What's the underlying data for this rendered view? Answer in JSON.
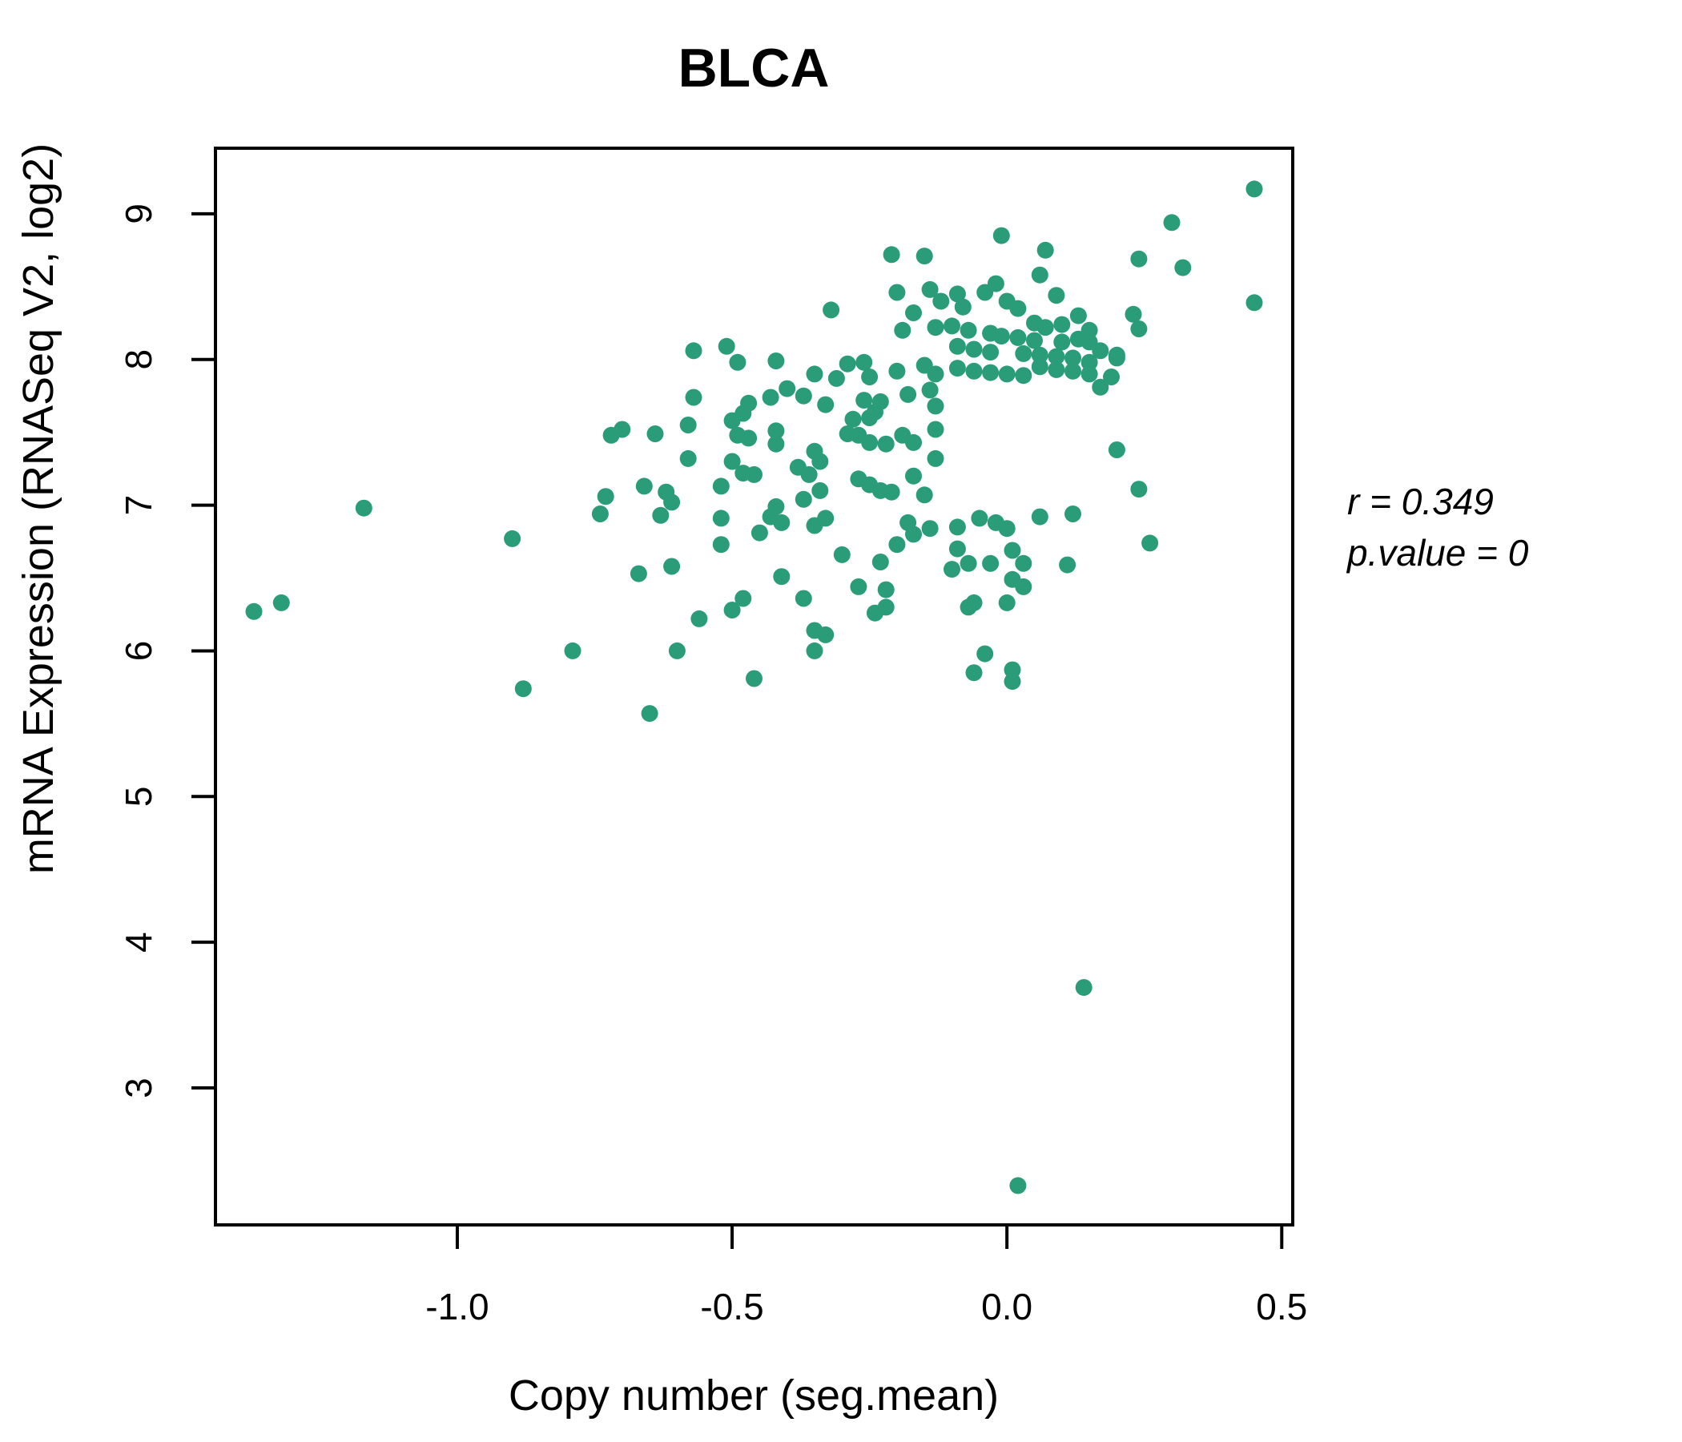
{
  "chart_data": {
    "type": "scatter",
    "title": "BLCA",
    "xlabel": "Copy number (seg.mean)",
    "ylabel": "mRNA Expression (RNASeq V2, log2)",
    "annotation": {
      "r_label": "r = 0.349",
      "p_label": "p.value = 0"
    },
    "colors": {
      "point": "#2a9d78",
      "title": "#1a9c76",
      "axis": "#000000"
    },
    "xlim": [
      -1.44,
      0.52
    ],
    "ylim": [
      2.06,
      9.45
    ],
    "x_ticks": [
      -1.0,
      -0.5,
      0.0,
      0.5
    ],
    "x_tick_labels": [
      "-1.0",
      "-0.5",
      "0.0",
      "0.5"
    ],
    "y_ticks": [
      3,
      4,
      5,
      6,
      7,
      8,
      9
    ],
    "y_tick_labels": [
      "3",
      "4",
      "5",
      "6",
      "7",
      "8",
      "9"
    ],
    "grid": false,
    "legend": "none",
    "points": [
      [
        -1.17,
        6.98
      ],
      [
        -0.9,
        6.77
      ],
      [
        -1.37,
        6.27
      ],
      [
        -1.32,
        6.33
      ],
      [
        -0.79,
        6.0
      ],
      [
        -0.88,
        5.74
      ],
      [
        -0.21,
        8.72
      ],
      [
        -0.15,
        8.71
      ],
      [
        -0.2,
        8.46
      ],
      [
        -0.14,
        8.48
      ],
      [
        -0.12,
        8.4
      ],
      [
        -0.32,
        8.34
      ],
      [
        -0.17,
        8.32
      ],
      [
        -0.19,
        8.2
      ],
      [
        -0.13,
        8.22
      ],
      [
        -0.57,
        8.06
      ],
      [
        -0.51,
        8.09
      ],
      [
        -0.49,
        7.98
      ],
      [
        -0.42,
        7.99
      ],
      [
        -0.29,
        7.97
      ],
      [
        -0.26,
        7.98
      ],
      [
        -0.35,
        7.9
      ],
      [
        -0.31,
        7.87
      ],
      [
        -0.25,
        7.88
      ],
      [
        -0.2,
        7.92
      ],
      [
        -0.15,
        7.96
      ],
      [
        -0.13,
        7.9
      ],
      [
        -0.47,
        7.7
      ],
      [
        -0.43,
        7.74
      ],
      [
        -0.4,
        7.8
      ],
      [
        -0.37,
        7.75
      ],
      [
        -0.57,
        7.74
      ],
      [
        -0.48,
        7.63
      ],
      [
        -0.33,
        7.69
      ],
      [
        -0.26,
        7.72
      ],
      [
        -0.23,
        7.71
      ],
      [
        -0.28,
        7.59
      ],
      [
        -0.25,
        7.6
      ],
      [
        -0.18,
        7.76
      ],
      [
        -0.14,
        7.79
      ],
      [
        -0.13,
        7.68
      ],
      [
        -0.5,
        7.58
      ],
      [
        -0.58,
        7.55
      ],
      [
        -0.49,
        7.48
      ],
      [
        -0.47,
        7.46
      ],
      [
        -0.7,
        7.52
      ],
      [
        -0.72,
        7.48
      ],
      [
        -0.64,
        7.49
      ],
      [
        -0.42,
        7.51
      ],
      [
        -0.42,
        7.42
      ],
      [
        -0.35,
        7.37
      ],
      [
        -0.34,
        7.3
      ],
      [
        -0.29,
        7.49
      ],
      [
        -0.27,
        7.48
      ],
      [
        -0.24,
        7.64
      ],
      [
        -0.25,
        7.43
      ],
      [
        -0.22,
        7.42
      ],
      [
        -0.17,
        7.43
      ],
      [
        -0.19,
        7.48
      ],
      [
        -0.13,
        7.52
      ],
      [
        -0.13,
        7.32
      ],
      [
        -0.58,
        7.32
      ],
      [
        -0.5,
        7.3
      ],
      [
        -0.48,
        7.22
      ],
      [
        -0.46,
        7.21
      ],
      [
        -0.52,
        7.13
      ],
      [
        -0.66,
        7.13
      ],
      [
        -0.62,
        7.09
      ],
      [
        -0.73,
        7.06
      ],
      [
        -0.61,
        7.02
      ],
      [
        -0.38,
        7.26
      ],
      [
        -0.36,
        7.21
      ],
      [
        -0.34,
        7.1
      ],
      [
        -0.37,
        7.04
      ],
      [
        -0.27,
        7.18
      ],
      [
        -0.25,
        7.14
      ],
      [
        -0.23,
        7.1
      ],
      [
        -0.21,
        7.09
      ],
      [
        -0.17,
        7.2
      ],
      [
        -0.15,
        7.07
      ],
      [
        -0.42,
        6.99
      ],
      [
        0.45,
        9.17
      ],
      [
        0.3,
        8.94
      ],
      [
        -0.01,
        8.85
      ],
      [
        0.07,
        8.75
      ],
      [
        0.24,
        8.69
      ],
      [
        0.32,
        8.63
      ],
      [
        0.06,
        8.58
      ],
      [
        -0.02,
        8.52
      ],
      [
        0.45,
        8.39
      ],
      [
        -0.09,
        8.45
      ],
      [
        -0.08,
        8.36
      ],
      [
        0.09,
        8.44
      ],
      [
        -0.04,
        8.46
      ],
      [
        0.0,
        8.4
      ],
      [
        0.02,
        8.35
      ],
      [
        0.13,
        8.3
      ],
      [
        0.23,
        8.31
      ],
      [
        0.24,
        8.21
      ],
      [
        -0.1,
        8.23
      ],
      [
        -0.07,
        8.2
      ],
      [
        0.05,
        8.25
      ],
      [
        0.07,
        8.22
      ],
      [
        0.1,
        8.24
      ],
      [
        0.15,
        8.2
      ],
      [
        -0.03,
        8.18
      ],
      [
        -0.01,
        8.16
      ],
      [
        0.02,
        8.15
      ],
      [
        0.05,
        8.13
      ],
      [
        0.1,
        8.12
      ],
      [
        0.13,
        8.14
      ],
      [
        0.15,
        8.12
      ],
      [
        0.17,
        8.06
      ],
      [
        0.2,
        8.03
      ],
      [
        0.2,
        8.01
      ],
      [
        -0.09,
        8.09
      ],
      [
        -0.06,
        8.07
      ],
      [
        -0.03,
        8.05
      ],
      [
        0.03,
        8.04
      ],
      [
        0.06,
        8.03
      ],
      [
        0.09,
        8.02
      ],
      [
        0.12,
        8.01
      ],
      [
        0.15,
        7.98
      ],
      [
        0.06,
        7.95
      ],
      [
        0.09,
        7.93
      ],
      [
        0.12,
        7.92
      ],
      [
        0.15,
        7.9
      ],
      [
        0.19,
        7.88
      ],
      [
        -0.09,
        7.94
      ],
      [
        -0.06,
        7.92
      ],
      [
        -0.03,
        7.91
      ],
      [
        0.0,
        7.9
      ],
      [
        0.03,
        7.89
      ],
      [
        0.17,
        7.81
      ],
      [
        0.2,
        7.38
      ],
      [
        0.24,
        7.11
      ],
      [
        -0.74,
        6.94
      ],
      [
        -0.63,
        6.93
      ],
      [
        -0.52,
        6.91
      ],
      [
        -0.43,
        6.92
      ],
      [
        -0.33,
        6.91
      ],
      [
        -0.41,
        6.88
      ],
      [
        -0.35,
        6.86
      ],
      [
        -0.45,
        6.81
      ],
      [
        -0.18,
        6.88
      ],
      [
        -0.14,
        6.84
      ],
      [
        -0.17,
        6.8
      ],
      [
        -0.52,
        6.73
      ],
      [
        -0.67,
        6.53
      ],
      [
        -0.61,
        6.58
      ],
      [
        -0.41,
        6.51
      ],
      [
        -0.48,
        6.36
      ],
      [
        -0.5,
        6.28
      ],
      [
        -0.56,
        6.22
      ],
      [
        -0.37,
        6.36
      ],
      [
        -0.35,
        6.14
      ],
      [
        -0.33,
        6.11
      ],
      [
        -0.35,
        6.0
      ],
      [
        -0.6,
        6.0
      ],
      [
        -0.46,
        5.81
      ],
      [
        -0.65,
        5.57
      ],
      [
        -0.27,
        6.44
      ],
      [
        -0.22,
        6.42
      ],
      [
        -0.22,
        6.3
      ],
      [
        -0.24,
        6.26
      ],
      [
        -0.3,
        6.66
      ],
      [
        -0.23,
        6.61
      ],
      [
        -0.2,
        6.73
      ],
      [
        -0.09,
        6.85
      ],
      [
        -0.05,
        6.91
      ],
      [
        -0.02,
        6.88
      ],
      [
        0.0,
        6.84
      ],
      [
        -0.09,
        6.7
      ],
      [
        -0.07,
        6.6
      ],
      [
        -0.1,
        6.56
      ],
      [
        -0.03,
        6.6
      ],
      [
        0.01,
        6.69
      ],
      [
        0.03,
        6.6
      ],
      [
        0.01,
        6.49
      ],
      [
        0.03,
        6.44
      ],
      [
        0.0,
        6.33
      ],
      [
        -0.06,
        6.33
      ],
      [
        -0.07,
        6.3
      ],
      [
        0.11,
        6.59
      ],
      [
        0.26,
        6.74
      ],
      [
        0.06,
        6.92
      ],
      [
        0.12,
        6.94
      ],
      [
        -0.04,
        5.98
      ],
      [
        -0.06,
        5.85
      ],
      [
        0.01,
        5.87
      ],
      [
        0.01,
        5.79
      ],
      [
        0.14,
        3.69
      ],
      [
        0.02,
        2.33
      ]
    ]
  }
}
